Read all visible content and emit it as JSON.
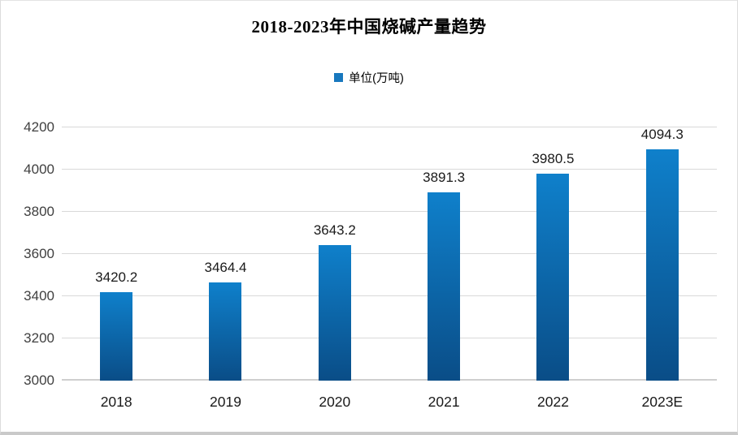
{
  "title": "2018-2023年中国烧碱产量趋势",
  "legend": {
    "label": "单位(万吨)",
    "swatch_color": "#1878be"
  },
  "colors": {
    "bar_gradient_top": "#0f80cb",
    "bar_gradient_bottom": "#0a4d87",
    "gridline": "#d9d9d9",
    "axis_label": "#404040",
    "text": "#1a1a1a"
  },
  "chart_data": {
    "type": "bar",
    "title": "2018-2023年中国烧碱产量趋势",
    "categories": [
      "2018",
      "2019",
      "2020",
      "2021",
      "2022",
      "2023E"
    ],
    "values": [
      3420.2,
      3464.4,
      3643.2,
      3891.3,
      3980.5,
      4094.3
    ],
    "value_labels": [
      "3420.2",
      "3464.4",
      "3643.2",
      "3891.3",
      "3980.5",
      "4094.3"
    ],
    "legend_entries": [
      "单位(万吨)"
    ],
    "legend_position": "top-center",
    "xlabel": "",
    "ylabel": "",
    "ylim": [
      3000,
      4200
    ],
    "yticks": [
      3000,
      3200,
      3400,
      3600,
      3800,
      4000,
      4200
    ],
    "grid": true
  }
}
